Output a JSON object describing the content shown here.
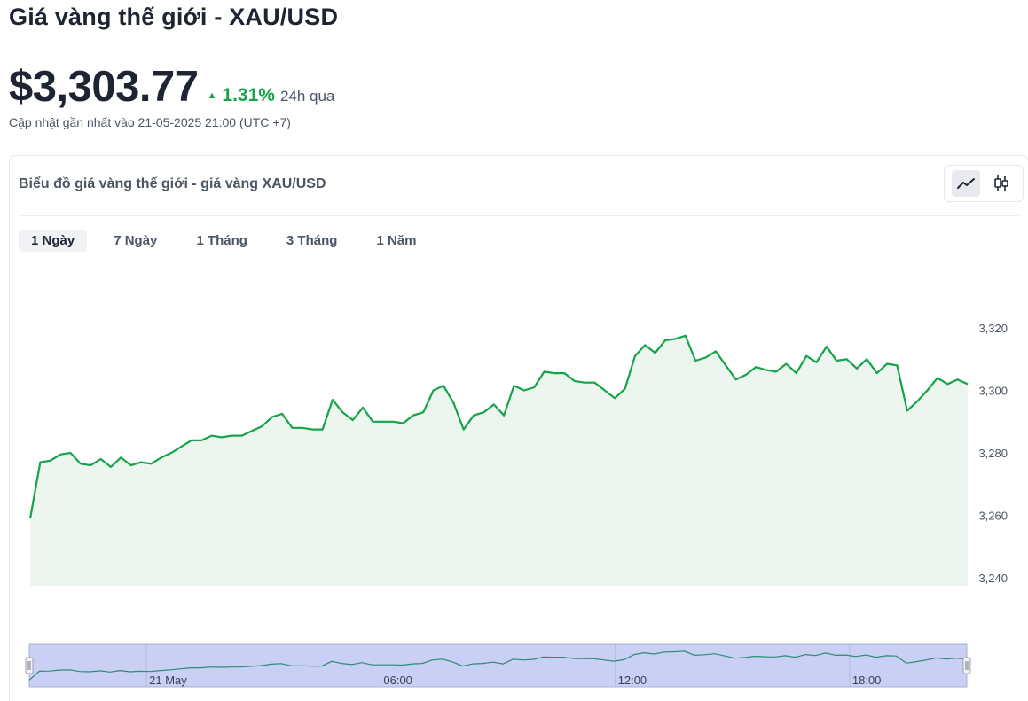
{
  "header": {
    "title": "Giá vàng thế giới - XAU/USD",
    "price": "$3,303.77",
    "change_pct": "1.31%",
    "change_period": "24h qua",
    "updated": "Cập nhật gần nhất vào 21-05-2025 21:00 (UTC +7)"
  },
  "card": {
    "title": "Biểu đồ giá vàng thế giới - giá vàng XAU/USD",
    "view_modes": [
      "line-chart-icon",
      "candlestick-icon"
    ],
    "active_view": "line-chart-icon"
  },
  "tabs": [
    {
      "label": "1 Ngày",
      "active": true
    },
    {
      "label": "7 Ngày",
      "active": false
    },
    {
      "label": "1 Tháng",
      "active": false
    },
    {
      "label": "3 Tháng",
      "active": false
    },
    {
      "label": "1 Năm",
      "active": false
    }
  ],
  "colors": {
    "line": "#16a34a",
    "area": "#ecf6ef",
    "navigator": "#c9cff5",
    "navigator_line": "#2c8c72"
  },
  "chart_data": {
    "type": "area",
    "title": "",
    "ylim": [
      3240,
      3330
    ],
    "yticks": [
      3240,
      3260,
      3280,
      3300,
      3320
    ],
    "ytick_labels": [
      "3,240",
      "3,260",
      "3,280",
      "3,300",
      "3,320"
    ],
    "xlim_hours": [
      0,
      24
    ],
    "navigator_labels": [
      {
        "label": "21 May",
        "hour": 3
      },
      {
        "label": "06:00",
        "hour": 9
      },
      {
        "label": "12:00",
        "hour": 15
      },
      {
        "label": "18:00",
        "hour": 21
      }
    ],
    "series": [
      {
        "values": [
          3259,
          3277,
          3277.5,
          3279.5,
          3280,
          3276.5,
          3276,
          3278,
          3275.5,
          3278.5,
          3276,
          3277,
          3276.5,
          3278.5,
          3280,
          3282,
          3284,
          3284,
          3285.5,
          3285,
          3285.5,
          3285.5,
          3287,
          3288.5,
          3291.5,
          3292.5,
          3288,
          3288,
          3287.5,
          3287.5,
          3297,
          3293,
          3290.5,
          3294.5,
          3290,
          3290,
          3290,
          3289.5,
          3292,
          3293,
          3300,
          3301.5,
          3296,
          3287.5,
          3292,
          3293,
          3295.5,
          3292,
          3301.5,
          3300,
          3301,
          3306,
          3305.5,
          3305.5,
          3303,
          3302.5,
          3302.5,
          3300,
          3297.5,
          3300.5,
          3311,
          3314.5,
          3312,
          3316,
          3316.5,
          3317.5,
          3309.5,
          3310.5,
          3312.5,
          3308,
          3303.5,
          3305,
          3307.5,
          3306.5,
          3306,
          3308.5,
          3305.5,
          3311,
          3309,
          3314,
          3309.5,
          3310,
          3307,
          3310,
          3305.5,
          3308.5,
          3308,
          3293.5,
          3296.5,
          3300,
          3304,
          3302,
          3303.5,
          3302
        ]
      }
    ]
  }
}
